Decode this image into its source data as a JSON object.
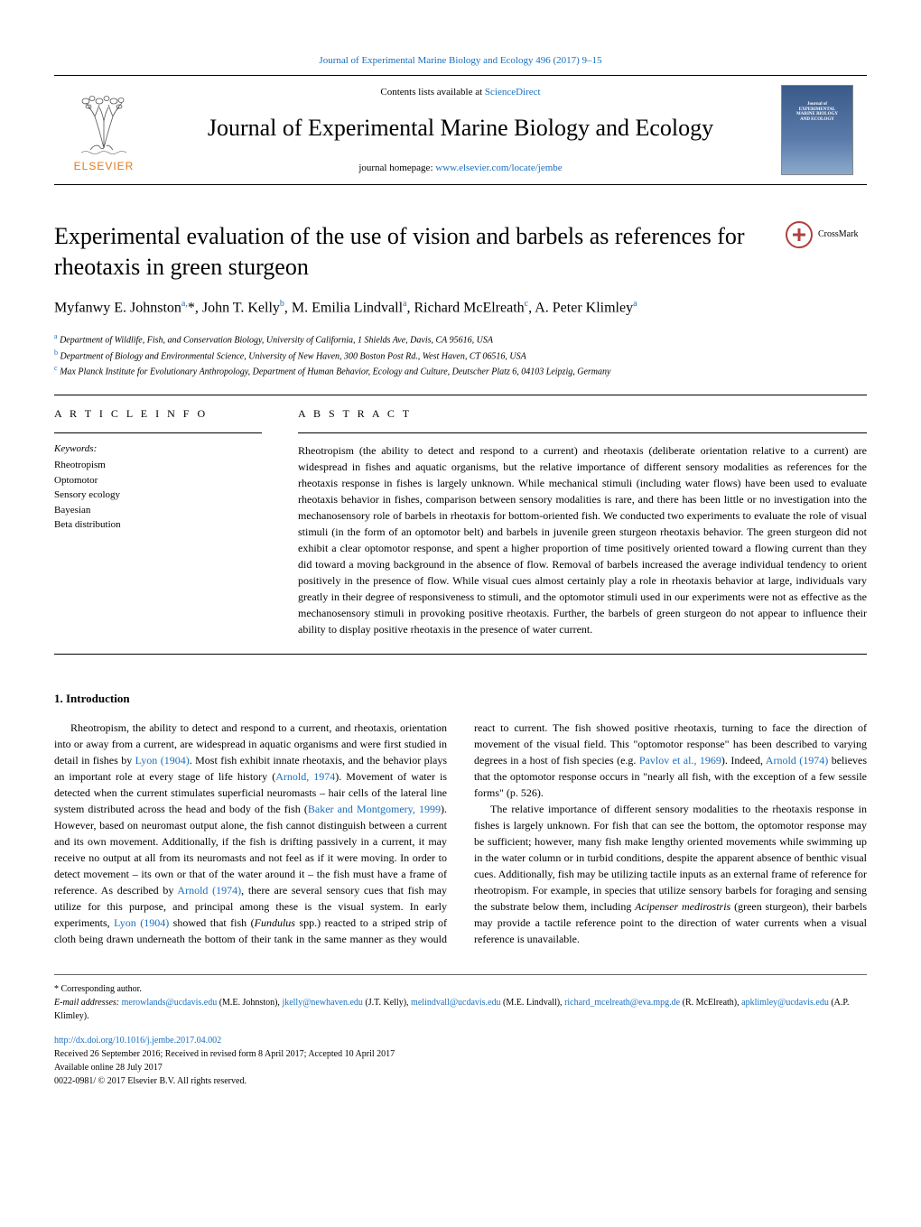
{
  "citation": "Journal of Experimental Marine Biology and Ecology 496 (2017) 9–15",
  "masthead": {
    "contents_prefix": "Contents lists available at ",
    "contents_link": "ScienceDirect",
    "journal_name": "Journal of Experimental Marine Biology and Ecology",
    "homepage_prefix": "journal homepage: ",
    "homepage_link": "www.elsevier.com/locate/jembe",
    "publisher": "ELSEVIER",
    "thumb_line1": "Journal of",
    "thumb_line2": "EXPERIMENTAL",
    "thumb_line3": "MARINE BIOLOGY",
    "thumb_line4": "AND ECOLOGY"
  },
  "title": "Experimental evaluation of the use of vision and barbels as references for rheotaxis in green sturgeon",
  "crossmark_label": "CrossMark",
  "authors_html": "Myfanwy E. Johnston<sup>a,</sup>*, John T. Kelly<sup>b</sup>, M. Emilia Lindvall<sup>a</sup>, Richard McElreath<sup>c</sup>, A. Peter Klimley<sup>a</sup>",
  "affiliations": {
    "a": "Department of Wildlife, Fish, and Conservation Biology, University of California, 1 Shields Ave, Davis, CA 95616, USA",
    "b": "Department of Biology and Environmental Science, University of New Haven, 300 Boston Post Rd., West Haven, CT 06516, USA",
    "c": "Max Planck Institute for Evolutionary Anthropology, Department of Human Behavior, Ecology and Culture, Deutscher Platz 6, 04103 Leipzig, Germany"
  },
  "info_heading": "A R T I C L E  I N F O",
  "abstract_heading": "A B S T R A C T",
  "keywords_label": "Keywords:",
  "keywords": [
    "Rheotropism",
    "Optomotor",
    "Sensory ecology",
    "Bayesian",
    "Beta distribution"
  ],
  "abstract": "Rheotropism (the ability to detect and respond to a current) and rheotaxis (deliberate orientation relative to a current) are widespread in fishes and aquatic organisms, but the relative importance of different sensory modalities as references for the rheotaxis response in fishes is largely unknown. While mechanical stimuli (including water flows) have been used to evaluate rheotaxis behavior in fishes, comparison between sensory modalities is rare, and there has been little or no investigation into the mechanosensory role of barbels in rheotaxis for bottom-oriented fish. We conducted two experiments to evaluate the role of visual stimuli (in the form of an optomotor belt) and barbels in juvenile green sturgeon rheotaxis behavior. The green sturgeon did not exhibit a clear optomotor response, and spent a higher proportion of time positively oriented toward a flowing current than they did toward a moving background in the absence of flow. Removal of barbels increased the average individual tendency to orient positively in the presence of flow. While visual cues almost certainly play a role in rheotaxis behavior at large, individuals vary greatly in their degree of responsiveness to stimuli, and the optomotor stimuli used in our experiments were not as effective as the mechanosensory stimuli in provoking positive rheotaxis. Further, the barbels of green sturgeon do not appear to influence their ability to display positive rheotaxis in the presence of water current.",
  "intro_heading": "1. Introduction",
  "intro_p1_a": "Rheotropism, the ability to detect and respond to a current, and rheotaxis, orientation into or away from a current, are widespread in aquatic organisms and were first studied in detail in fishes by ",
  "intro_p1_ref1": "Lyon (1904)",
  "intro_p1_b": ". Most fish exhibit innate rheotaxis, and the behavior plays an important role at every stage of life history (",
  "intro_p1_ref2": "Arnold, 1974",
  "intro_p1_c": "). Movement of water is detected when the current stimulates superficial neuromasts – hair cells of the lateral line system distributed across the head and body of the fish (",
  "intro_p1_ref3": "Baker and Montgomery, 1999",
  "intro_p1_d": "). However, based on neuromast output alone, the fish cannot distinguish between a current and its own movement. Additionally, if the fish is drifting passively in a current, it may receive no output at all from its neuromasts and not feel as if it were moving. In order to detect movement – its own or that of the water around it – the fish must have a frame of reference. As described by ",
  "intro_p1_ref4": "Arnold (1974)",
  "intro_p1_e": ", there are several sensory cues that fish may utilize for this purpose, and principal among these is the visual system. In early experiments, ",
  "intro_p1_ref5": "Lyon (1904)",
  "intro_p1_f": " showed that fish (",
  "intro_p1_species": "Fundulus",
  "intro_p1_g": " spp.) reacted to a striped strip of cloth being drawn underneath the bottom of their tank in the same manner as they would react to current. The fish showed positive rheotaxis, turning to face the direction of movement of the visual field. This \"optomotor response\" has been described to varying degrees in a host of fish species (e.g. ",
  "intro_p1_ref6": "Pavlov et al., 1969",
  "intro_p1_h": "). Indeed, ",
  "intro_p1_ref7": "Arnold (1974)",
  "intro_p1_i": " believes that the optomotor response occurs in \"nearly all fish, with the exception of a few sessile forms\" (p. 526).",
  "intro_p2_a": "The relative importance of different sensory modalities to the rheotaxis response in fishes is largely unknown. For fish that can see the bottom, the optomotor response may be sufficient; however, many fish make lengthy oriented movements while swimming up in the water column or in turbid conditions, despite the apparent absence of benthic visual cues. Additionally, fish may be utilizing tactile inputs as an external frame of reference for rheotropism. For example, in species that utilize sensory barbels for foraging and sensing the substrate below them, including ",
  "intro_p2_species": "Acipenser medirostris",
  "intro_p2_b": " (green sturgeon), their barbels may provide a tactile reference point to the direction of water currents when a visual reference is unavailable.",
  "footnotes": {
    "corresponding": "* Corresponding author.",
    "email_label": "E-mail addresses: ",
    "emails": [
      {
        "addr": "merowlands@ucdavis.edu",
        "who": " (M.E. Johnston), "
      },
      {
        "addr": "jkelly@newhaven.edu",
        "who": " (J.T. Kelly), "
      },
      {
        "addr": "melindvall@ucdavis.edu",
        "who": " (M.E. Lindvall), "
      },
      {
        "addr": "richard_mcelreath@eva.mpg.de",
        "who": " (R. McElreath), "
      },
      {
        "addr": "apklimley@ucdavis.edu",
        "who": " (A.P. Klimley)."
      }
    ]
  },
  "footer": {
    "doi": "http://dx.doi.org/10.1016/j.jembe.2017.04.002",
    "received": "Received 26 September 2016; Received in revised form 8 April 2017; Accepted 10 April 2017",
    "available": "Available online 28 July 2017",
    "copyright": "0022-0981/ © 2017 Elsevier B.V. All rights reserved."
  },
  "colors": {
    "link": "#1a6ebd",
    "crossmark": "#b0413e",
    "elsevier_orange": "#e67817"
  }
}
